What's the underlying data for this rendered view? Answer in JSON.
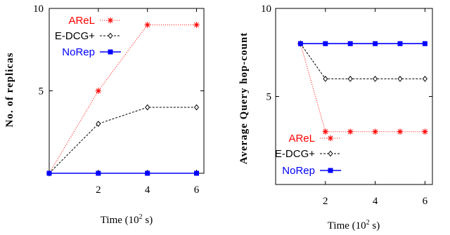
{
  "chart_data": [
    {
      "type": "line",
      "xlabel_main": "Time (10",
      "xlabel_sup": "2",
      "xlabel_end": " s)",
      "ylabel": "No. of replicas",
      "xlim": [
        0,
        6.3
      ],
      "ylim": [
        0,
        10
      ],
      "xticks": [
        2,
        4,
        6
      ],
      "yticks": [
        5,
        10
      ],
      "grid": false,
      "legend_position": "top-center",
      "series": [
        {
          "name": "AReL",
          "color": "#ff0000",
          "marker": "star",
          "dash": "1,2",
          "x": [
            0,
            2,
            4,
            6
          ],
          "y": [
            0,
            5,
            9,
            9
          ]
        },
        {
          "name": "E-DCG+",
          "color": "#000000",
          "marker": "diamond",
          "dash": "3,2",
          "x": [
            0,
            2,
            4,
            6
          ],
          "y": [
            0,
            3,
            4,
            4
          ]
        },
        {
          "name": "NoRep",
          "color": "#0000ff",
          "marker": "square",
          "dash": "",
          "x": [
            0,
            2,
            4,
            6
          ],
          "y": [
            0,
            0,
            0,
            0
          ]
        }
      ]
    },
    {
      "type": "line",
      "xlabel_main": "Time (10",
      "xlabel_sup": "2",
      "xlabel_end": " s)",
      "ylabel": "Average Query hop-count",
      "xlim": [
        0,
        6.3
      ],
      "ylim": [
        0,
        10
      ],
      "xticks": [
        2,
        4,
        6
      ],
      "yticks": [
        5,
        10
      ],
      "grid": false,
      "legend_position": "bottom-left",
      "series": [
        {
          "name": "AReL",
          "color": "#ff0000",
          "marker": "star",
          "dash": "1,2",
          "x": [
            1,
            2,
            3,
            4,
            5,
            6
          ],
          "y": [
            8,
            3,
            3,
            3,
            3,
            3
          ]
        },
        {
          "name": "E-DCG+",
          "color": "#000000",
          "marker": "diamond",
          "dash": "3,2",
          "x": [
            1,
            2,
            3,
            4,
            5,
            6
          ],
          "y": [
            8,
            6,
            6,
            6,
            6,
            6
          ]
        },
        {
          "name": "NoRep",
          "color": "#0000ff",
          "marker": "square",
          "dash": "",
          "x": [
            1,
            2,
            3,
            4,
            5,
            6
          ],
          "y": [
            8,
            8,
            8,
            8,
            8,
            8
          ]
        }
      ]
    }
  ]
}
